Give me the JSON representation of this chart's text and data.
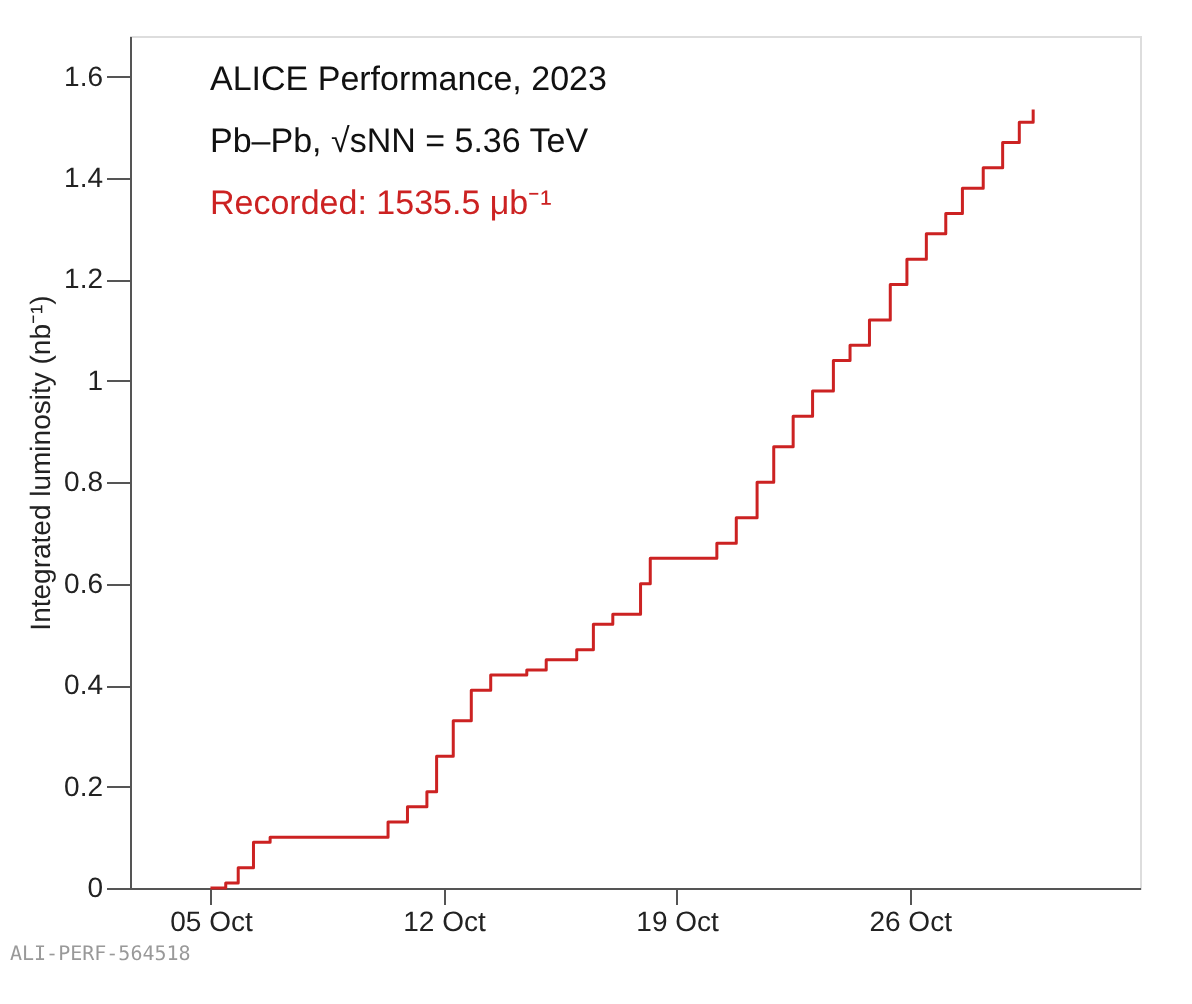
{
  "chart_data": {
    "type": "step",
    "ylabel": "Integrated luminosity (nb⁻¹)",
    "annotations": [
      "ALICE Performance, 2023",
      "Pb–Pb, √sNN = 5.36 TeV",
      "Recorded: 1535.5 μb⁻¹",
      "ALI-PERF-564518"
    ],
    "x": [
      "2023-10-05T00:00",
      "2023-10-05T11:00",
      "2023-10-05T20:00",
      "2023-10-06T07:00",
      "2023-10-06T19:00",
      "2023-10-10T02:00",
      "2023-10-10T08:00",
      "2023-10-10T22:00",
      "2023-10-11T12:00",
      "2023-10-11T19:00",
      "2023-10-12T07:00",
      "2023-10-12T20:00",
      "2023-10-13T10:00",
      "2023-10-14T12:00",
      "2023-10-15T02:00",
      "2023-10-16T00:00",
      "2023-10-16T12:00",
      "2023-10-17T02:00",
      "2023-10-17T22:00",
      "2023-10-18T05:00",
      "2023-10-19T14:00",
      "2023-10-20T05:00",
      "2023-10-20T19:00",
      "2023-10-21T10:00",
      "2023-10-21T22:00",
      "2023-10-22T12:00",
      "2023-10-23T02:00",
      "2023-10-23T17:00",
      "2023-10-24T05:00",
      "2023-10-24T19:00",
      "2023-10-25T10:00",
      "2023-10-25T22:00",
      "2023-10-26T12:00",
      "2023-10-27T02:00",
      "2023-10-27T14:00",
      "2023-10-28T05:00",
      "2023-10-28T19:00",
      "2023-10-29T07:00",
      "2023-10-29T17:00"
    ],
    "series": [
      {
        "color": "#cc2222",
        "values": [
          0,
          0.01,
          0.04,
          0.09,
          0.1,
          0.1,
          0.13,
          0.16,
          0.19,
          0.26,
          0.33,
          0.39,
          0.42,
          0.43,
          0.45,
          0.47,
          0.52,
          0.54,
          0.6,
          0.65,
          0.65,
          0.68,
          0.73,
          0.8,
          0.87,
          0.93,
          0.98,
          1.04,
          1.07,
          1.12,
          1.19,
          1.24,
          1.29,
          1.33,
          1.38,
          1.42,
          1.47,
          1.51,
          1.535
        ]
      }
    ],
    "xlim": [
      "2023-10-02T14:00",
      "2023-11-01T22:00"
    ],
    "xticks": [
      {
        "value": "2023-10-05",
        "label": "05 Oct"
      },
      {
        "value": "2023-10-12",
        "label": "12 Oct"
      },
      {
        "value": "2023-10-19",
        "label": "19 Oct"
      },
      {
        "value": "2023-10-26",
        "label": "26 Oct"
      }
    ],
    "ylim": [
      0,
      1.68
    ],
    "yticks": [
      0,
      0.2,
      0.4,
      0.6,
      0.8,
      1,
      1.2,
      1.4,
      1.6
    ],
    "grid": false
  }
}
